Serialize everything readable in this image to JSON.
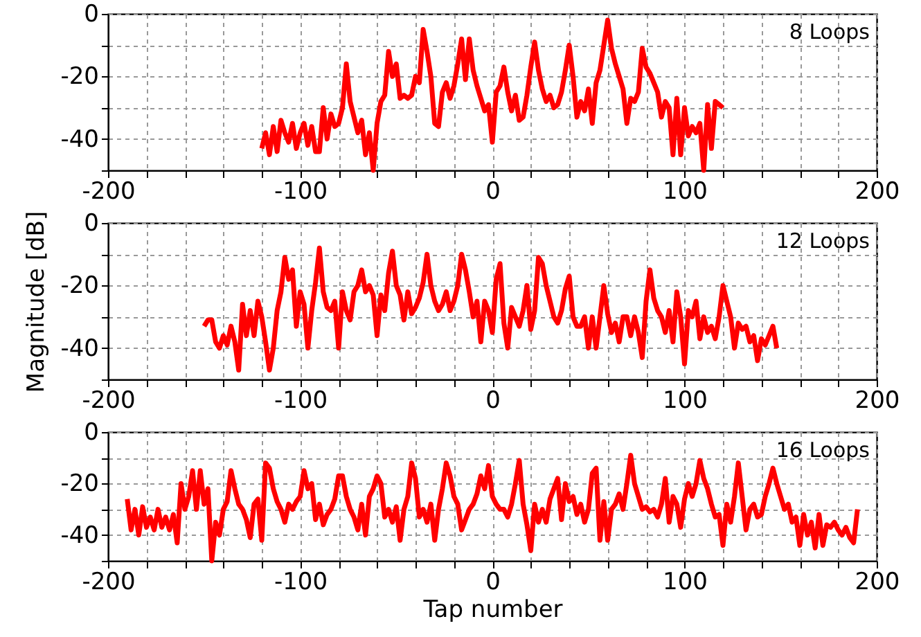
{
  "chart_data": [
    {
      "type": "line",
      "annotations": [
        "8 Loops"
      ],
      "xlim": [
        -200,
        200
      ],
      "ylim": [
        -50,
        0
      ],
      "grid": true,
      "xticks": [
        -200,
        {
          "value": -180,
          "label": null
        },
        {
          "value": -160,
          "label": null
        },
        {
          "value": -140,
          "label": null
        },
        {
          "value": -120,
          "label": null
        },
        -100,
        {
          "value": -80,
          "label": null
        },
        {
          "value": -60,
          "label": null
        },
        {
          "value": -40,
          "label": null
        },
        {
          "value": -20,
          "label": null
        },
        0,
        {
          "value": 20,
          "label": null
        },
        {
          "value": 40,
          "label": null
        },
        {
          "value": 60,
          "label": null
        },
        {
          "value": 80,
          "label": null
        },
        100,
        {
          "value": 120,
          "label": null
        },
        {
          "value": 140,
          "label": null
        },
        {
          "value": 160,
          "label": null
        },
        {
          "value": 180,
          "label": null
        },
        200
      ],
      "yticks": [
        0,
        {
          "value": -10,
          "label": null
        },
        -20,
        {
          "value": -30,
          "label": null
        },
        -40,
        {
          "value": -50,
          "label": null
        }
      ],
      "x": [
        -120,
        -118,
        -116,
        -114,
        -112,
        -110,
        -108,
        -106,
        -104,
        -102,
        -100,
        -98,
        -96,
        -94,
        -92,
        -90,
        -88,
        -86,
        -84,
        -82,
        -80,
        -78,
        -76,
        -74,
        -72,
        -70,
        -68,
        -66,
        -64,
        -62,
        -60,
        -58,
        -56,
        -54,
        -52,
        -50,
        -48,
        -46,
        -44,
        -42,
        -40,
        -38,
        -36,
        -34,
        -32,
        -30,
        -28,
        -26,
        -24,
        -22,
        -20,
        -18,
        -16,
        -14,
        -12,
        -10,
        -8,
        -6,
        -4,
        -2,
        0,
        2,
        4,
        6,
        8,
        10,
        12,
        14,
        16,
        18,
        20,
        22,
        24,
        26,
        28,
        30,
        32,
        34,
        36,
        38,
        40,
        42,
        44,
        46,
        48,
        50,
        52,
        54,
        56,
        58,
        60,
        62,
        64,
        66,
        68,
        70,
        72,
        74,
        76,
        78,
        80,
        82,
        84,
        86,
        88,
        90,
        92,
        94,
        96,
        98,
        100,
        102,
        104,
        106,
        108,
        110,
        112,
        114,
        116,
        118,
        120
      ],
      "series": [
        {
          "color": "#ff0000",
          "values": [
            -43,
            -38,
            -45,
            -36,
            -44,
            -34,
            -38,
            -41,
            -35,
            -43,
            -38,
            -35,
            -42,
            -36,
            -44,
            -44,
            -30,
            -40,
            -32,
            -36,
            -35,
            -30,
            -16,
            -28,
            -33,
            -38,
            -34,
            -45,
            -38,
            -50,
            -35,
            -28,
            -26,
            -12,
            -20,
            -16,
            -27,
            -26,
            -27,
            -26,
            -20,
            -22,
            -5,
            -12,
            -20,
            -35,
            -36,
            -25,
            -22,
            -27,
            -23,
            -16,
            -8,
            -21,
            -8,
            -18,
            -23,
            -27,
            -31,
            -29,
            -41,
            -25,
            -23,
            -17,
            -25,
            -31,
            -26,
            -34,
            -33,
            -26,
            -17,
            -9,
            -18,
            -24,
            -28,
            -26,
            -30,
            -29,
            -25,
            -18,
            -10,
            -20,
            -33,
            -28,
            -31,
            -24,
            -35,
            -22,
            -18,
            -10,
            -2,
            -11,
            -16,
            -20,
            -24,
            -35,
            -27,
            -28,
            -25,
            -11,
            -17,
            -19,
            -22,
            -25,
            -33,
            -28,
            -30,
            -45,
            -27,
            -45,
            -30,
            -39,
            -36,
            -38,
            -35,
            -50,
            -29,
            -43,
            -28,
            -29,
            -30
          ]
        }
      ]
    },
    {
      "type": "line",
      "annotations": [
        "12 Loops"
      ],
      "ylabel": "Magnitude [dB]",
      "xlim": [
        -200,
        200
      ],
      "ylim": [
        -50,
        0
      ],
      "grid": true,
      "xticks": [
        -200,
        {
          "value": -180,
          "label": null
        },
        {
          "value": -160,
          "label": null
        },
        {
          "value": -140,
          "label": null
        },
        {
          "value": -120,
          "label": null
        },
        -100,
        {
          "value": -80,
          "label": null
        },
        {
          "value": -60,
          "label": null
        },
        {
          "value": -40,
          "label": null
        },
        {
          "value": -20,
          "label": null
        },
        0,
        {
          "value": 20,
          "label": null
        },
        {
          "value": 40,
          "label": null
        },
        {
          "value": 60,
          "label": null
        },
        {
          "value": 80,
          "label": null
        },
        100,
        {
          "value": 120,
          "label": null
        },
        {
          "value": 140,
          "label": null
        },
        {
          "value": 160,
          "label": null
        },
        {
          "value": 180,
          "label": null
        },
        200
      ],
      "yticks": [
        0,
        {
          "value": -10,
          "label": null
        },
        -20,
        {
          "value": -30,
          "label": null
        },
        -40,
        {
          "value": -50,
          "label": null
        }
      ],
      "x": [
        -150,
        -148,
        -146,
        -144,
        -142,
        -140,
        -138,
        -136,
        -134,
        -132,
        -130,
        -128,
        -126,
        -124,
        -122,
        -120,
        -118,
        -116,
        -114,
        -112,
        -110,
        -108,
        -106,
        -104,
        -102,
        -100,
        -98,
        -96,
        -94,
        -92,
        -90,
        -88,
        -86,
        -84,
        -82,
        -80,
        -78,
        -76,
        -74,
        -72,
        -70,
        -68,
        -66,
        -64,
        -62,
        -60,
        -58,
        -56,
        -54,
        -52,
        -50,
        -48,
        -46,
        -44,
        -42,
        -40,
        -38,
        -36,
        -34,
        -32,
        -30,
        -28,
        -26,
        -24,
        -22,
        -20,
        -18,
        -16,
        -14,
        -12,
        -10,
        -8,
        -6,
        -4,
        -2,
        0,
        2,
        4,
        6,
        8,
        10,
        12,
        14,
        16,
        18,
        20,
        22,
        24,
        26,
        28,
        30,
        32,
        34,
        36,
        38,
        40,
        42,
        44,
        46,
        48,
        50,
        52,
        54,
        56,
        58,
        60,
        62,
        64,
        66,
        68,
        70,
        72,
        74,
        76,
        78,
        80,
        82,
        84,
        86,
        88,
        90,
        92,
        94,
        96,
        98,
        100,
        102,
        104,
        106,
        108,
        110,
        112,
        114,
        116,
        118,
        120,
        122,
        124,
        126,
        128,
        130,
        132,
        134,
        136,
        138,
        140,
        142,
        144,
        146,
        148
      ],
      "series": [
        {
          "color": "#ff0000",
          "values": [
            -33,
            -31,
            -31,
            -38,
            -40,
            -36,
            -39,
            -33,
            -38,
            -47,
            -26,
            -36,
            -28,
            -36,
            -25,
            -30,
            -38,
            -47,
            -40,
            -28,
            -22,
            -11,
            -18,
            -15,
            -33,
            -22,
            -26,
            -40,
            -28,
            -19,
            -8,
            -22,
            -27,
            -28,
            -25,
            -40,
            -22,
            -28,
            -31,
            -22,
            -20,
            -15,
            -22,
            -20,
            -23,
            -36,
            -23,
            -28,
            -16,
            -9,
            -20,
            -23,
            -31,
            -22,
            -29,
            -27,
            -24,
            -19,
            -10,
            -20,
            -25,
            -28,
            -26,
            -22,
            -28,
            -25,
            -20,
            -10,
            -15,
            -22,
            -30,
            -25,
            -38,
            -25,
            -28,
            -35,
            -18,
            -13,
            -32,
            -40,
            -27,
            -30,
            -33,
            -28,
            -20,
            -34,
            -28,
            -11,
            -13,
            -20,
            -25,
            -30,
            -32,
            -28,
            -21,
            -17,
            -30,
            -33,
            -33,
            -30,
            -40,
            -30,
            -40,
            -30,
            -20,
            -29,
            -35,
            -32,
            -38,
            -30,
            -30,
            -36,
            -30,
            -35,
            -43,
            -25,
            -15,
            -24,
            -28,
            -30,
            -35,
            -28,
            -38,
            -22,
            -30,
            -45,
            -28,
            -30,
            -25,
            -37,
            -30,
            -35,
            -33,
            -37,
            -30,
            -20,
            -25,
            -30,
            -40,
            -32,
            -34,
            -33,
            -38,
            -36,
            -44,
            -37,
            -39,
            -36,
            -33,
            -40
          ]
        }
      ]
    },
    {
      "type": "line",
      "annotations": [
        "16 Loops"
      ],
      "xlabel": "Tap number",
      "xlim": [
        -200,
        200
      ],
      "ylim": [
        -50,
        0
      ],
      "grid": true,
      "xticks": [
        -200,
        {
          "value": -180,
          "label": null
        },
        {
          "value": -160,
          "label": null
        },
        {
          "value": -140,
          "label": null
        },
        {
          "value": -120,
          "label": null
        },
        -100,
        {
          "value": -80,
          "label": null
        },
        {
          "value": -60,
          "label": null
        },
        {
          "value": -40,
          "label": null
        },
        {
          "value": -20,
          "label": null
        },
        0,
        {
          "value": 20,
          "label": null
        },
        {
          "value": 40,
          "label": null
        },
        {
          "value": 60,
          "label": null
        },
        {
          "value": 80,
          "label": null
        },
        100,
        {
          "value": 120,
          "label": null
        },
        {
          "value": 140,
          "label": null
        },
        {
          "value": 160,
          "label": null
        },
        {
          "value": 180,
          "label": null
        },
        200
      ],
      "yticks": [
        0,
        {
          "value": -10,
          "label": null
        },
        -20,
        {
          "value": -30,
          "label": null
        },
        -40,
        {
          "value": -50,
          "label": null
        }
      ],
      "x": [
        -190,
        -188,
        -186,
        -184,
        -182,
        -180,
        -178,
        -176,
        -174,
        -172,
        -170,
        -168,
        -166,
        -164,
        -162,
        -160,
        -158,
        -156,
        -154,
        -152,
        -150,
        -148,
        -146,
        -144,
        -142,
        -140,
        -138,
        -136,
        -134,
        -132,
        -130,
        -128,
        -126,
        -124,
        -122,
        -120,
        -118,
        -116,
        -114,
        -112,
        -110,
        -108,
        -106,
        -104,
        -102,
        -100,
        -98,
        -96,
        -94,
        -92,
        -90,
        -88,
        -86,
        -84,
        -82,
        -80,
        -78,
        -76,
        -74,
        -72,
        -70,
        -68,
        -66,
        -64,
        -62,
        -60,
        -58,
        -56,
        -54,
        -52,
        -50,
        -48,
        -46,
        -44,
        -42,
        -40,
        -38,
        -36,
        -34,
        -32,
        -30,
        -28,
        -26,
        -24,
        -22,
        -20,
        -18,
        -16,
        -14,
        -12,
        -10,
        -8,
        -6,
        -4,
        -2,
        0,
        2,
        4,
        6,
        8,
        10,
        12,
        14,
        16,
        18,
        20,
        22,
        24,
        26,
        28,
        30,
        32,
        34,
        36,
        38,
        40,
        42,
        44,
        46,
        48,
        50,
        52,
        54,
        56,
        58,
        60,
        62,
        64,
        66,
        68,
        70,
        72,
        74,
        76,
        78,
        80,
        82,
        84,
        86,
        88,
        90,
        92,
        94,
        96,
        98,
        100,
        102,
        104,
        106,
        108,
        110,
        112,
        114,
        116,
        118,
        120,
        122,
        124,
        126,
        128,
        130,
        132,
        134,
        136,
        138,
        140,
        142,
        144,
        146,
        148,
        150,
        152,
        154,
        156,
        158,
        160,
        162,
        164,
        166,
        168,
        170,
        172,
        174,
        176,
        178,
        180,
        182,
        184,
        186,
        188,
        190
      ],
      "series": [
        {
          "color": "#ff0000",
          "values": [
            -26,
            -38,
            -30,
            -40,
            -29,
            -37,
            -33,
            -38,
            -30,
            -37,
            -33,
            -38,
            -32,
            -43,
            -20,
            -30,
            -25,
            -15,
            -30,
            -15,
            -28,
            -22,
            -50,
            -35,
            -40,
            -30,
            -27,
            -15,
            -22,
            -28,
            -30,
            -34,
            -41,
            -28,
            -26,
            -42,
            -12,
            -14,
            -22,
            -27,
            -30,
            -35,
            -28,
            -30,
            -27,
            -25,
            -15,
            -22,
            -20,
            -34,
            -28,
            -36,
            -32,
            -30,
            -26,
            -17,
            -17,
            -25,
            -30,
            -33,
            -38,
            -28,
            -40,
            -25,
            -22,
            -17,
            -20,
            -33,
            -30,
            -35,
            -29,
            -42,
            -30,
            -25,
            -12,
            -18,
            -33,
            -30,
            -35,
            -28,
            -42,
            -30,
            -22,
            -12,
            -17,
            -25,
            -28,
            -38,
            -34,
            -30,
            -28,
            -24,
            -17,
            -22,
            -13,
            -25,
            -28,
            -30,
            -30,
            -33,
            -28,
            -20,
            -11,
            -28,
            -36,
            -46,
            -28,
            -35,
            -30,
            -35,
            -26,
            -22,
            -18,
            -34,
            -20,
            -27,
            -25,
            -32,
            -28,
            -35,
            -30,
            -16,
            -14,
            -42,
            -27,
            -42,
            -30,
            -28,
            -24,
            -30,
            -20,
            -9,
            -20,
            -25,
            -30,
            -29,
            -31,
            -30,
            -33,
            -28,
            -18,
            -35,
            -25,
            -28,
            -37,
            -26,
            -20,
            -25,
            -20,
            -11,
            -18,
            -22,
            -28,
            -33,
            -32,
            -44,
            -28,
            -35,
            -25,
            -12,
            -25,
            -38,
            -30,
            -28,
            -33,
            -32,
            -25,
            -20,
            -14,
            -20,
            -25,
            -30,
            -28,
            -35,
            -33,
            -44,
            -32,
            -40,
            -35,
            -45,
            -32,
            -44,
            -36,
            -37,
            -35,
            -38,
            -40,
            -37,
            -41,
            -43,
            -30
          ]
        }
      ]
    }
  ]
}
